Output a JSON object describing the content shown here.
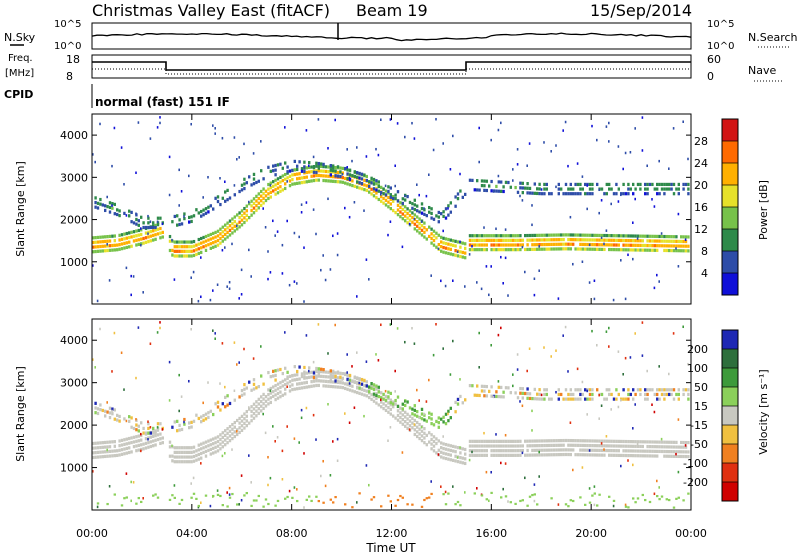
{
  "header": {
    "title": "Christmas Valley East (fitACF)",
    "beam": "Beam 19",
    "date": "15/Sep/2014"
  },
  "noise_panel": {
    "left_label": "N.Sky",
    "right_label": "N.Search",
    "left_ticks": [
      "10^5",
      "10^0"
    ],
    "right_ticks": [
      "10^5",
      "10^0"
    ]
  },
  "freq_panel": {
    "left_label_1": "Freq.",
    "left_label_2": "[MHz]",
    "right_label": "Nave",
    "left_ticks": [
      "18",
      "8"
    ],
    "right_ticks": [
      "60",
      "0"
    ]
  },
  "cpid": {
    "label": "CPID",
    "value": "normal (fast) 151 IF"
  },
  "chart_data": [
    {
      "type": "heatmap",
      "title": "Power",
      "ylabel": "Slant Range [km]",
      "xlabel": "",
      "ylim": [
        0,
        4500
      ],
      "y_ticks": [
        "1000",
        "2000",
        "3000",
        "4000"
      ],
      "x_ticks": [
        "00:00",
        "04:00",
        "08:00",
        "12:00",
        "16:00",
        "20:00",
        "00:00"
      ],
      "colorbar_label": "Power [dB]",
      "colorbar_ticks": [
        "28",
        "24",
        "20",
        "16",
        "12",
        "8",
        "4"
      ],
      "colorbar_colors": [
        "#d21414",
        "#ff6a00",
        "#ffb000",
        "#e6e12a",
        "#77c24a",
        "#2e8a4a",
        "#2e4da8",
        "#1010d8"
      ],
      "echo_bands": [
        {
          "name": "ground-scatter-main",
          "points": [
            [
              0,
              1450
            ],
            [
              1,
              1500
            ],
            [
              2,
              1650
            ],
            [
              2.8,
              1800
            ],
            [
              3.2,
              1350
            ],
            [
              4,
              1350
            ],
            [
              5,
              1600
            ],
            [
              6,
              2100
            ],
            [
              7,
              2700
            ],
            [
              8,
              3050
            ],
            [
              9,
              3150
            ],
            [
              10,
              3100
            ],
            [
              11,
              2900
            ],
            [
              12,
              2450
            ],
            [
              13,
              1950
            ],
            [
              14,
              1450
            ],
            [
              15,
              1300
            ],
            [
              15.1,
              1500
            ],
            [
              17,
              1500
            ],
            [
              19,
              1520
            ],
            [
              21,
              1500
            ],
            [
              23,
              1480
            ],
            [
              24,
              1470
            ]
          ],
          "width_km": 350,
          "dB": 24
        },
        {
          "name": "upper-band",
          "points": [
            [
              0,
              2500
            ],
            [
              1,
              2300
            ],
            [
              2,
              2000
            ],
            [
              3,
              2000
            ],
            [
              4,
              2150
            ],
            [
              5,
              2500
            ],
            [
              6,
              2900
            ],
            [
              7,
              3200
            ],
            [
              8,
              3350
            ],
            [
              9,
              3300
            ],
            [
              10,
              3200
            ],
            [
              11,
              3000
            ],
            [
              12,
              2700
            ],
            [
              13,
              2400
            ],
            [
              14,
              2100
            ],
            [
              15.1,
              2900
            ],
            [
              18,
              2800
            ],
            [
              21,
              2800
            ],
            [
              24,
              2800
            ]
          ],
          "width_km": 300,
          "dB": 10
        }
      ]
    },
    {
      "type": "heatmap",
      "title": "Velocity",
      "ylabel": "Slant Range [km]",
      "xlabel": "Time UT",
      "ylim": [
        0,
        4500
      ],
      "y_ticks": [
        "1000",
        "2000",
        "3000",
        "4000"
      ],
      "x_ticks": [
        "00:00",
        "04:00",
        "08:00",
        "12:00",
        "16:00",
        "20:00",
        "00:00"
      ],
      "colorbar_label": "Velocity [m s⁻¹]",
      "colorbar_ticks": [
        "200",
        "100",
        "50",
        "15",
        "-15",
        "-50",
        "-100",
        "-200"
      ],
      "colorbar_colors": [
        "#1e28b4",
        "#2e6f3c",
        "#3d9a3a",
        "#8bd05a",
        "#c8c8c0",
        "#f0c040",
        "#f08020",
        "#e03010",
        "#d00000"
      ]
    }
  ]
}
